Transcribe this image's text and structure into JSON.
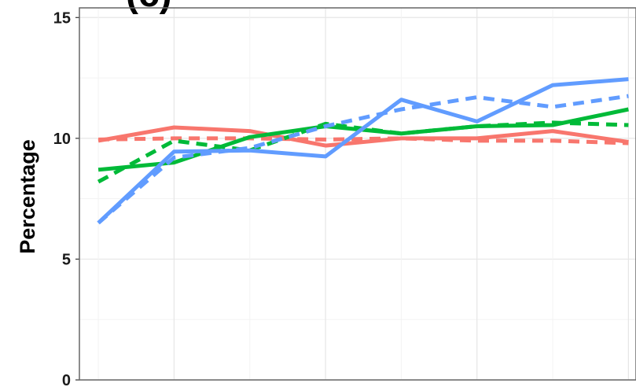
{
  "chart_data": {
    "type": "line",
    "panel_label": "(c)",
    "title": "",
    "xlabel": "",
    "ylabel": "Percentage",
    "ylim": [
      0,
      15.4
    ],
    "xlim": [
      0.75,
      8.1
    ],
    "y_ticks": [
      0,
      5,
      10,
      15
    ],
    "x_tick_labels_visible": false,
    "grid": true,
    "legend": "none",
    "x": [
      1,
      2,
      3,
      4,
      5,
      6,
      7,
      8
    ],
    "series": [
      {
        "color": "#F8766D",
        "style": "solid",
        "values": [
          9.9,
          10.45,
          10.3,
          9.7,
          10.0,
          10.0,
          10.3,
          9.85
        ]
      },
      {
        "color": "#F8766D",
        "style": "dashed",
        "values": [
          9.95,
          10.0,
          10.0,
          9.95,
          10.0,
          9.9,
          9.9,
          9.8
        ]
      },
      {
        "color": "#00BA38",
        "style": "solid",
        "values": [
          8.7,
          9.0,
          10.05,
          10.5,
          10.2,
          10.5,
          10.55,
          11.2
        ]
      },
      {
        "color": "#00BA38",
        "style": "dashed",
        "values": [
          8.2,
          9.9,
          9.5,
          10.6,
          10.2,
          10.5,
          10.65,
          10.55
        ]
      },
      {
        "color": "#619CFF",
        "style": "solid",
        "values": [
          6.5,
          9.45,
          9.5,
          9.25,
          11.6,
          10.7,
          12.2,
          12.45
        ]
      },
      {
        "color": "#619CFF",
        "style": "dashed",
        "values": [
          6.5,
          9.2,
          9.6,
          10.5,
          11.2,
          11.7,
          11.3,
          11.75
        ]
      }
    ]
  }
}
